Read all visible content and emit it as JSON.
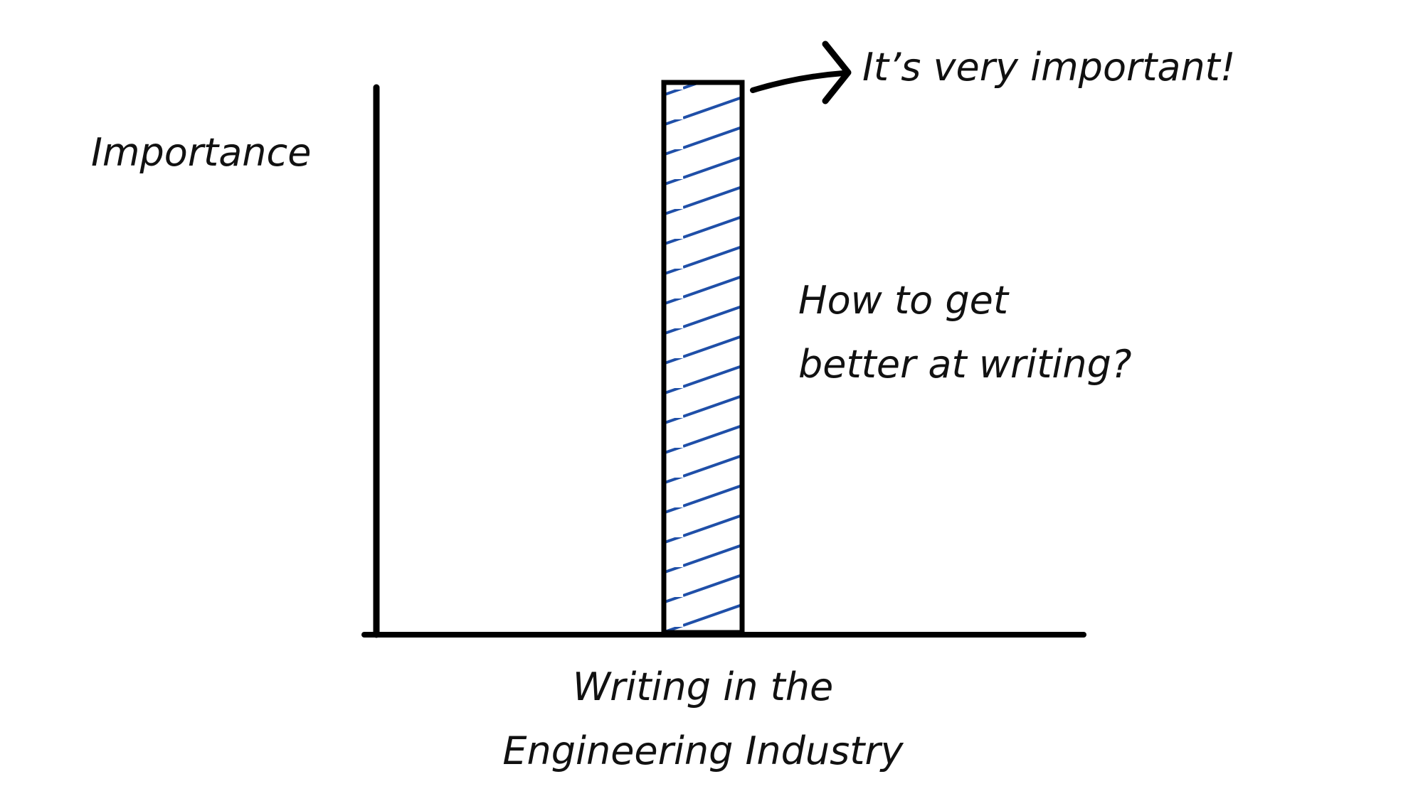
{
  "chart_data": {
    "type": "bar",
    "y_label": "Importance",
    "categories": [
      "Writing in the\nEngineering Industry"
    ],
    "values": [
      100
    ],
    "ylim": [
      0,
      100
    ],
    "color": "#1f4fa8",
    "annotations": [
      "It’s very important!",
      "How to get\nbetter at writing?"
    ]
  }
}
